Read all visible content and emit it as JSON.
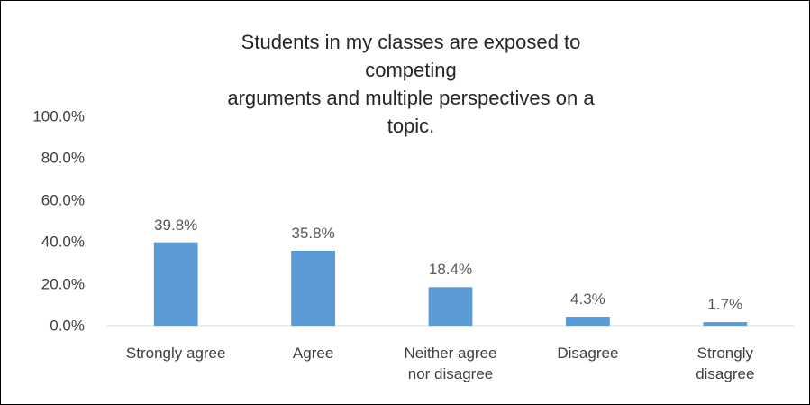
{
  "chart_data": {
    "type": "bar",
    "title": "Students in my classes are exposed to competing\narguments and multiple perspectives on a topic.",
    "categories": [
      "Strongly agree",
      "Agree",
      "Neither agree\nnor disagree",
      "Disagree",
      "Strongly\ndisagree"
    ],
    "values": [
      39.8,
      35.8,
      18.4,
      4.3,
      1.7
    ],
    "value_labels": [
      "39.8%",
      "35.8%",
      "18.4%",
      "4.3%",
      "1.7%"
    ],
    "color": "#5b9bd5",
    "ylim": [
      0,
      100
    ],
    "yticks": [
      {
        "value": 0,
        "label": "0.0%"
      },
      {
        "value": 20,
        "label": "20.0%"
      },
      {
        "value": 40,
        "label": "40.0%"
      },
      {
        "value": 60,
        "label": "60.0%"
      },
      {
        "value": 80,
        "label": "80.0%"
      },
      {
        "value": 100,
        "label": "100.0%"
      }
    ],
    "grid": false
  }
}
